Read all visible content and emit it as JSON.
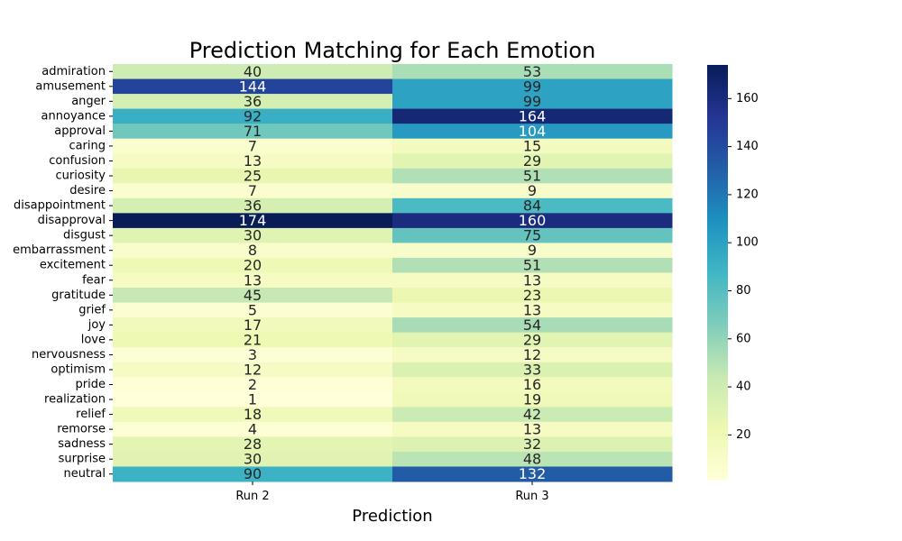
{
  "chart_data": {
    "type": "heatmap",
    "title": "Prediction Matching for Each Emotion",
    "xlabel": "Prediction",
    "ylabel": "",
    "columns": [
      "Run 2",
      "Run 3"
    ],
    "rows": [
      "admiration",
      "amusement",
      "anger",
      "annoyance",
      "approval",
      "caring",
      "confusion",
      "curiosity",
      "desire",
      "disappointment",
      "disapproval",
      "disgust",
      "embarrassment",
      "excitement",
      "fear",
      "gratitude",
      "grief",
      "joy",
      "love",
      "nervousness",
      "optimism",
      "pride",
      "realization",
      "relief",
      "remorse",
      "sadness",
      "surprise",
      "neutral"
    ],
    "values": [
      [
        40,
        53
      ],
      [
        144,
        99
      ],
      [
        36,
        99
      ],
      [
        92,
        164
      ],
      [
        71,
        104
      ],
      [
        7,
        15
      ],
      [
        13,
        29
      ],
      [
        25,
        51
      ],
      [
        7,
        9
      ],
      [
        36,
        84
      ],
      [
        174,
        160
      ],
      [
        30,
        75
      ],
      [
        8,
        9
      ],
      [
        20,
        51
      ],
      [
        13,
        13
      ],
      [
        45,
        23
      ],
      [
        5,
        13
      ],
      [
        17,
        54
      ],
      [
        21,
        29
      ],
      [
        3,
        12
      ],
      [
        12,
        33
      ],
      [
        2,
        16
      ],
      [
        1,
        19
      ],
      [
        18,
        42
      ],
      [
        4,
        13
      ],
      [
        28,
        32
      ],
      [
        30,
        48
      ],
      [
        90,
        132
      ]
    ],
    "colorbar": {
      "colormap": "YlGnBu",
      "vmin": 1,
      "vmax": 174,
      "ticks": [
        "20",
        "40",
        "60",
        "80",
        "100",
        "120",
        "140",
        "160"
      ]
    },
    "grid": false,
    "legend": "colorbar-right"
  }
}
